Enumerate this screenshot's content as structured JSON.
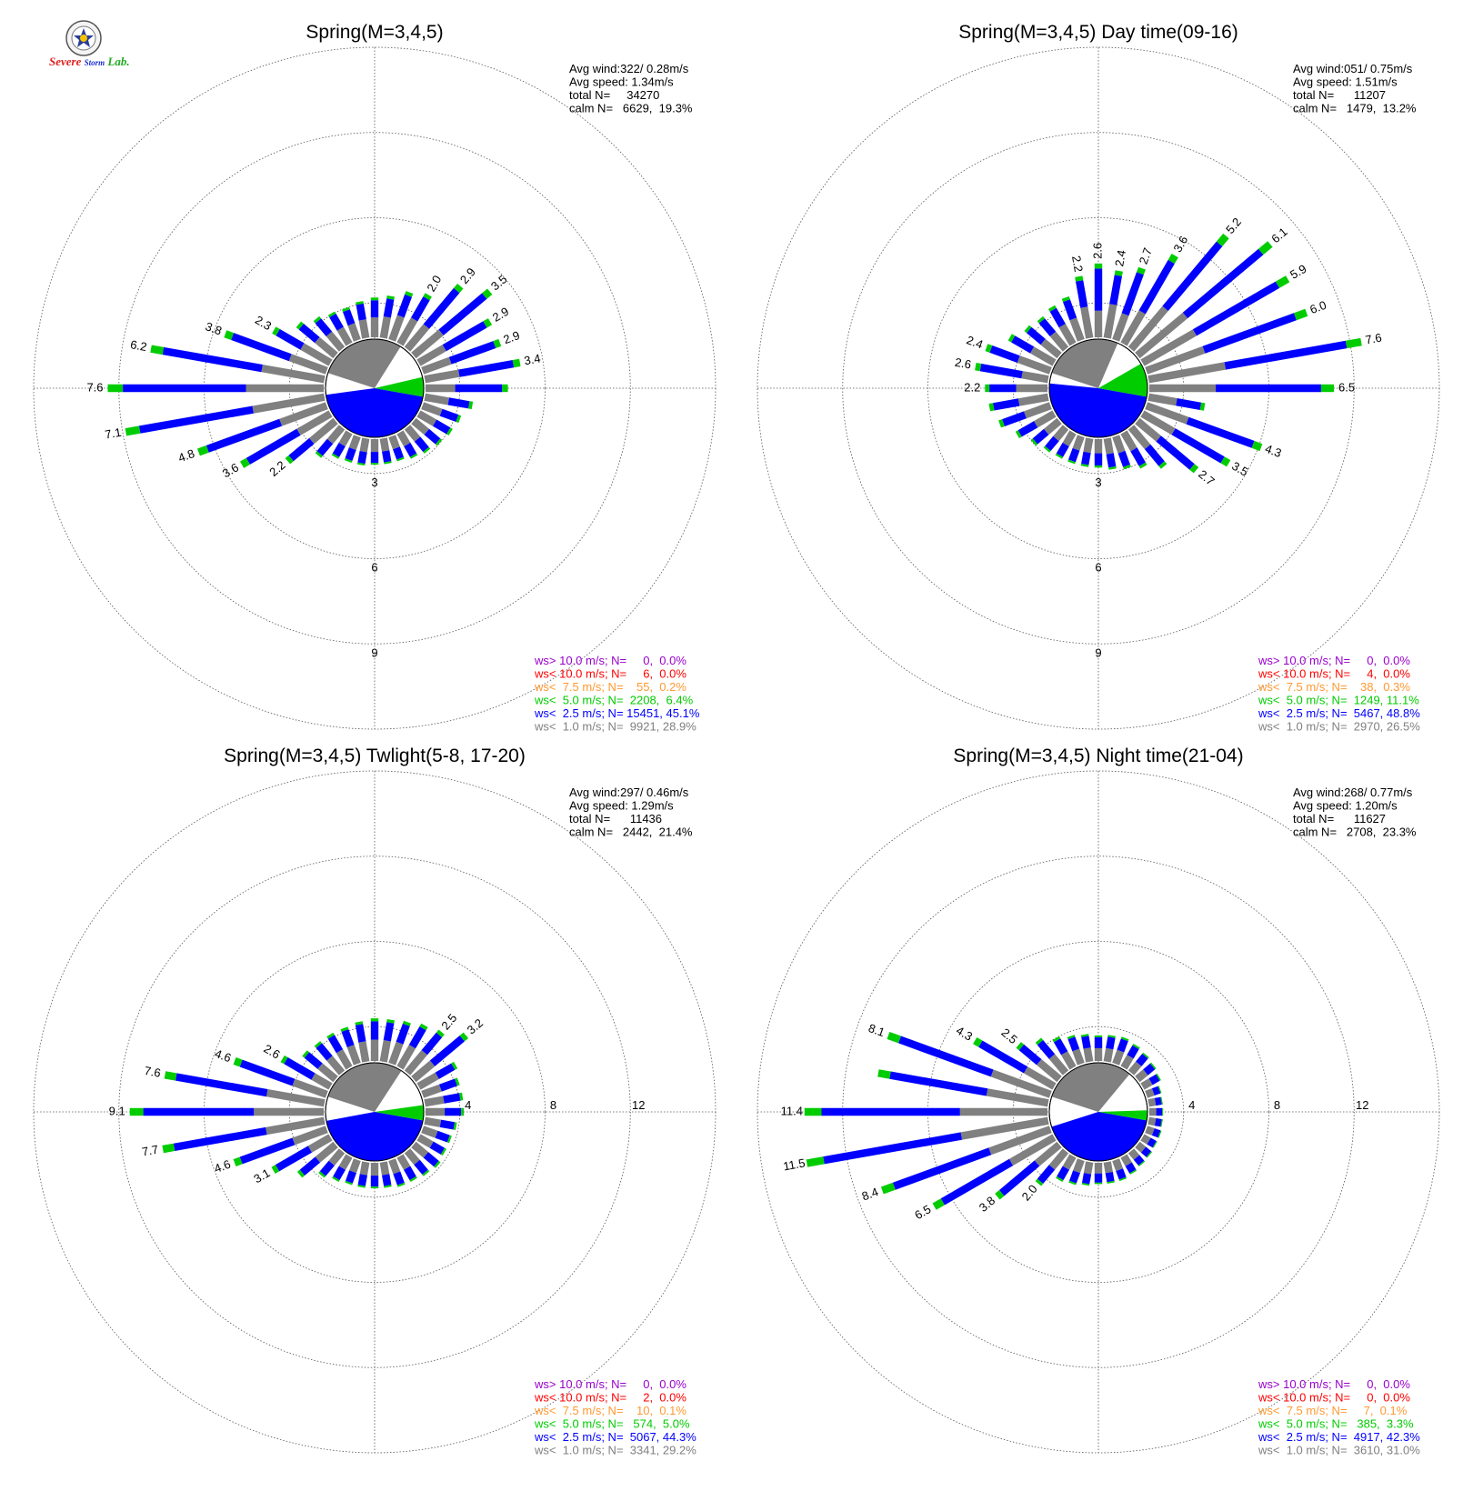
{
  "logo": {
    "text_severe": "Severe",
    "text_storm": "Storm",
    "text_lab": "Lab."
  },
  "colors": {
    "ws_gt10": "#9900cc",
    "ws_lt10": "#ff0000",
    "ws_lt7_5": "#ff9933",
    "ws_lt5": "#00cc00",
    "ws_lt2_5": "#0000ff",
    "ws_lt1": "#808080",
    "text": "#000000"
  },
  "chart_data": [
    {
      "type": "wind-rose",
      "title": "Spring(M=3,4,5)",
      "radial_scale": {
        "max": 12,
        "rings": [
          3,
          6,
          9,
          12
        ],
        "ring_labels": [
          "3",
          "6",
          "9"
        ],
        "label_direction": "down"
      },
      "stats": {
        "avg_wind": "Avg wind:322/ 0.28m/s",
        "avg_speed": "Avg speed: 1.34m/s",
        "total": "total N=     34270",
        "calm": "calm N=   6629,  19.3%"
      },
      "legend": [
        "ws> 10.0 m/s; N=     0,  0.0%",
        "ws< 10.0 m/s; N=     6,  0.0%",
        "ws<  7.5 m/s; N=    55,  0.2%",
        "ws<  5.0 m/s; N=  2208,  6.4%",
        "ws<  2.5 m/s; N= 15451, 45.1%",
        "ws<  1.0 m/s; N=  9921, 28.9%"
      ],
      "calm_pie": {
        "ws_lt1": 28.9,
        "ws_lt2_5": 45.1,
        "ws_lt5": 6.4
      },
      "sectors": [
        [
          90,
          2.9,
          null
        ],
        [
          80,
          3.4,
          "3.4"
        ],
        [
          70,
          2.9,
          "2.9"
        ],
        [
          60,
          2.9,
          "2.9"
        ],
        [
          50,
          3.5,
          "3.5"
        ],
        [
          40,
          2.9,
          "2.9"
        ],
        [
          30,
          2.0,
          "2.0"
        ],
        [
          20,
          1.8,
          null
        ],
        [
          10,
          1.5,
          null
        ],
        [
          0,
          1.4,
          null
        ],
        [
          350,
          1.3,
          null
        ],
        [
          340,
          1.2,
          null
        ],
        [
          330,
          1.25,
          null
        ],
        [
          320,
          1.4,
          null
        ],
        [
          310,
          1.7,
          null
        ],
        [
          300,
          2.3,
          "2.3"
        ],
        [
          290,
          3.8,
          "3.8"
        ],
        [
          280,
          6.2,
          "6.2"
        ],
        [
          270,
          7.6,
          "7.6"
        ],
        [
          260,
          7.1,
          "7.1"
        ],
        [
          250,
          4.8,
          "4.8"
        ],
        [
          240,
          3.6,
          "3.6"
        ],
        [
          230,
          2.2,
          "2.2"
        ],
        [
          220,
          1.3,
          null
        ],
        [
          210,
          1.0,
          null
        ],
        [
          200,
          0.95,
          null
        ],
        [
          190,
          0.95,
          null
        ],
        [
          180,
          0.9,
          null
        ],
        [
          170,
          0.9,
          null
        ],
        [
          160,
          0.9,
          null
        ],
        [
          150,
          1.0,
          null
        ],
        [
          140,
          1.1,
          null
        ],
        [
          130,
          1.2,
          null
        ],
        [
          120,
          1.3,
          null
        ],
        [
          110,
          1.4,
          null
        ],
        [
          100,
          1.7,
          null
        ]
      ]
    },
    {
      "type": "wind-rose",
      "title": "Spring(M=3,4,5) Day time(09-16)",
      "radial_scale": {
        "max": 12,
        "rings": [
          3,
          6,
          9,
          12
        ],
        "ring_labels": [
          "3",
          "6",
          "9"
        ],
        "label_direction": "down"
      },
      "stats": {
        "avg_wind": "Avg wind:051/ 0.75m/s",
        "avg_speed": "Avg speed: 1.51m/s",
        "total": "total N=      11207",
        "calm": "calm N=   1479,  13.2%"
      },
      "legend": [
        "ws> 10.0 m/s; N=     0,  0.0%",
        "ws< 10.0 m/s; N=     4,  0.0%",
        "ws<  7.5 m/s; N=    38,  0.3%",
        "ws<  5.0 m/s; N=  1249, 11.1%",
        "ws<  2.5 m/s; N=  5467, 48.8%",
        "ws<  1.0 m/s; N=  2970, 26.5%"
      ],
      "calm_pie": {
        "ws_lt1": 26.5,
        "ws_lt2_5": 48.8,
        "ws_lt5": 11.1
      },
      "sectors": [
        [
          90,
          6.5,
          "6.5"
        ],
        [
          80,
          7.6,
          "7.6"
        ],
        [
          70,
          6.0,
          "6.0"
        ],
        [
          60,
          5.9,
          "5.9"
        ],
        [
          50,
          6.1,
          "6.1"
        ],
        [
          40,
          5.2,
          "5.2"
        ],
        [
          30,
          3.6,
          "3.6"
        ],
        [
          20,
          2.7,
          "2.7"
        ],
        [
          10,
          2.4,
          "2.4"
        ],
        [
          0,
          2.6,
          "2.6"
        ],
        [
          350,
          2.2,
          "2.2"
        ],
        [
          340,
          1.6,
          null
        ],
        [
          330,
          1.5,
          null
        ],
        [
          320,
          1.4,
          null
        ],
        [
          310,
          1.5,
          null
        ],
        [
          300,
          1.8,
          null
        ],
        [
          290,
          2.4,
          "2.4"
        ],
        [
          280,
          2.6,
          "2.6"
        ],
        [
          270,
          2.2,
          "2.2"
        ],
        [
          260,
          2.1,
          null
        ],
        [
          250,
          1.9,
          null
        ],
        [
          240,
          1.5,
          null
        ],
        [
          230,
          1.2,
          null
        ],
        [
          220,
          1.05,
          null
        ],
        [
          210,
          1.0,
          null
        ],
        [
          200,
          1.0,
          null
        ],
        [
          190,
          1.0,
          null
        ],
        [
          180,
          1.0,
          null
        ],
        [
          170,
          1.1,
          null
        ],
        [
          160,
          1.2,
          null
        ],
        [
          150,
          1.4,
          null
        ],
        [
          140,
          1.8,
          null
        ],
        [
          130,
          2.7,
          "2.7"
        ],
        [
          120,
          3.5,
          "3.5"
        ],
        [
          110,
          4.3,
          "4.3"
        ],
        [
          100,
          2.0,
          null
        ]
      ]
    },
    {
      "type": "wind-rose",
      "title": "Spring(M=3,4,5) Twlight(5-8, 17-20)",
      "radial_scale": {
        "max": 12,
        "rings": [
          4,
          8,
          12,
          16
        ],
        "ring_labels": [
          "4",
          "8",
          "12"
        ],
        "label_direction": "right"
      },
      "stats": {
        "avg_wind": "Avg wind:297/ 0.46m/s",
        "avg_speed": "Avg speed: 1.29m/s",
        "total": "total N=      11436",
        "calm": "calm N=   2442,  21.4%"
      },
      "legend": [
        "ws> 10.0 m/s; N=     0,  0.0%",
        "ws< 10.0 m/s; N=     2,  0.0%",
        "ws<  7.5 m/s; N=    10,  0.1%",
        "ws<  5.0 m/s; N=   574,  5.0%",
        "ws<  2.5 m/s; N=  5067, 44.3%",
        "ws<  1.0 m/s; N=  3341, 29.2%"
      ],
      "calm_pie": {
        "ws_lt1": 29.2,
        "ws_lt2_5": 44.3,
        "ws_lt5": 5.0
      },
      "sectors": [
        [
          90,
          1.8,
          null
        ],
        [
          80,
          1.8,
          null
        ],
        [
          70,
          1.8,
          null
        ],
        [
          60,
          2.0,
          null
        ],
        [
          50,
          3.2,
          "3.2"
        ],
        [
          40,
          2.5,
          "2.5"
        ],
        [
          30,
          2.3,
          null
        ],
        [
          20,
          2.1,
          null
        ],
        [
          10,
          2.0,
          null
        ],
        [
          0,
          2.0,
          null
        ],
        [
          350,
          1.9,
          null
        ],
        [
          340,
          1.8,
          null
        ],
        [
          330,
          1.8,
          null
        ],
        [
          320,
          1.8,
          null
        ],
        [
          310,
          1.9,
          null
        ],
        [
          300,
          2.6,
          "2.6"
        ],
        [
          290,
          4.6,
          "4.6"
        ],
        [
          280,
          7.6,
          "7.6"
        ],
        [
          270,
          9.1,
          "9.1"
        ],
        [
          260,
          7.7,
          "7.7"
        ],
        [
          250,
          4.6,
          "4.6"
        ],
        [
          240,
          3.1,
          "3.1"
        ],
        [
          230,
          2.2,
          null
        ],
        [
          220,
          1.5,
          null
        ],
        [
          210,
          1.3,
          null
        ],
        [
          200,
          1.2,
          null
        ],
        [
          190,
          1.2,
          null
        ],
        [
          180,
          1.2,
          null
        ],
        [
          170,
          1.2,
          null
        ],
        [
          160,
          1.3,
          null
        ],
        [
          150,
          1.3,
          null
        ],
        [
          140,
          1.4,
          null
        ],
        [
          130,
          1.5,
          null
        ],
        [
          120,
          1.4,
          null
        ],
        [
          110,
          1.4,
          null
        ],
        [
          100,
          1.5,
          null
        ]
      ]
    },
    {
      "type": "wind-rose",
      "title": "Spring(M=3,4,5) Night time(21-04)",
      "radial_scale": {
        "max": 12,
        "rings": [
          4,
          8,
          12,
          16
        ],
        "ring_labels": [
          "4",
          "8",
          "12"
        ],
        "label_direction": "right"
      },
      "stats": {
        "avg_wind": "Avg wind:268/ 0.77m/s",
        "avg_speed": "Avg speed: 1.20m/s",
        "total": "total N=      11627",
        "calm": "calm N=   2708,  23.3%"
      },
      "legend": [
        "ws> 10.0 m/s; N=     0,  0.0%",
        "ws< 10.0 m/s; N=     0,  0.0%",
        "ws<  7.5 m/s; N=     7,  0.1%",
        "ws<  5.0 m/s; N=   385,  3.3%",
        "ws<  2.5 m/s; N=  4917, 42.3%",
        "ws<  1.0 m/s; N=  3610, 31.0%"
      ],
      "calm_pie": {
        "ws_lt1": 31.0,
        "ws_lt2_5": 42.3,
        "ws_lt5": 3.3
      },
      "sectors": [
        [
          90,
          0.65,
          null
        ],
        [
          80,
          0.65,
          null
        ],
        [
          70,
          0.7,
          null
        ],
        [
          60,
          0.9,
          null
        ],
        [
          50,
          1.0,
          null
        ],
        [
          40,
          1.1,
          null
        ],
        [
          30,
          1.2,
          null
        ],
        [
          20,
          1.3,
          null
        ],
        [
          10,
          1.25,
          null
        ],
        [
          0,
          1.2,
          null
        ],
        [
          350,
          1.3,
          null
        ],
        [
          340,
          1.4,
          null
        ],
        [
          330,
          1.6,
          null
        ],
        [
          320,
          2.0,
          null
        ],
        [
          310,
          2.5,
          "2.5"
        ],
        [
          300,
          4.3,
          "4.3"
        ],
        [
          290,
          8.1,
          "8.1"
        ],
        [
          280,
          8.1,
          null
        ],
        [
          270,
          11.4,
          "11.4"
        ],
        [
          260,
          11.5,
          "11.5"
        ],
        [
          250,
          8.4,
          "8.4"
        ],
        [
          240,
          6.5,
          "6.5"
        ],
        [
          230,
          3.8,
          "3.8"
        ],
        [
          220,
          2.0,
          "2.0"
        ],
        [
          210,
          1.3,
          null
        ],
        [
          200,
          1.2,
          null
        ],
        [
          190,
          1.1,
          null
        ],
        [
          180,
          1.0,
          null
        ],
        [
          170,
          1.0,
          null
        ],
        [
          160,
          1.0,
          null
        ],
        [
          150,
          0.9,
          null
        ],
        [
          140,
          0.8,
          null
        ],
        [
          130,
          0.75,
          null
        ],
        [
          120,
          0.7,
          null
        ],
        [
          110,
          0.7,
          null
        ],
        [
          100,
          0.65,
          null
        ]
      ]
    }
  ]
}
